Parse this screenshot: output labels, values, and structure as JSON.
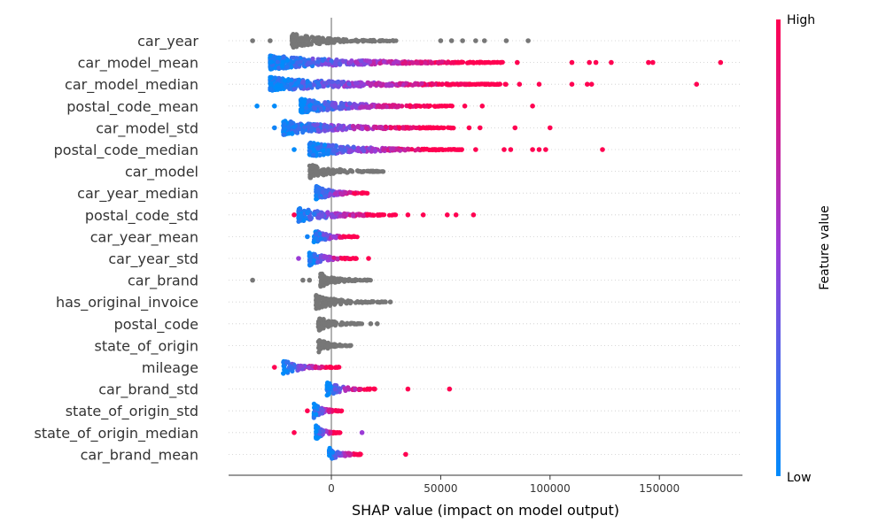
{
  "chart_data": {
    "type": "scatter",
    "subtype": "shap-beeswarm",
    "title": "",
    "xlabel": "SHAP value (impact on model output)",
    "xlim": [
      -47000,
      188000
    ],
    "x_ticks": [
      0,
      50000,
      100000,
      150000
    ],
    "x_tick_labels": [
      "0",
      "50000",
      "100000",
      "150000"
    ],
    "grid": false,
    "colorbar": {
      "label": "Feature value",
      "high_label": "High",
      "low_label": "Low",
      "low_color": "#008bfb",
      "mid_color": "#9b3bd6",
      "high_color": "#ff0051",
      "placement": "right"
    },
    "features": [
      {
        "name": "car_year",
        "colored": false,
        "core": [
          -18000,
          32000
        ],
        "sparse": [
          [
            -36000,
            0.5
          ],
          [
            -28000,
            0.5
          ],
          [
            50000,
            0.5
          ],
          [
            55000,
            0.5
          ],
          [
            60000,
            0.5
          ],
          [
            66000,
            0.5
          ],
          [
            70000,
            0.5
          ],
          [
            80000,
            0.5
          ],
          [
            90000,
            0.5
          ]
        ]
      },
      {
        "name": "car_model_mean",
        "colored": true,
        "core": [
          -28000,
          80000
        ],
        "sparse": [
          [
            85000,
            1
          ],
          [
            110000,
            1
          ],
          [
            118000,
            1
          ],
          [
            121000,
            1
          ],
          [
            128000,
            1
          ],
          [
            145000,
            1
          ],
          [
            147000,
            1
          ],
          [
            178000,
            1
          ]
        ]
      },
      {
        "name": "car_model_median",
        "colored": true,
        "core": [
          -28000,
          80000
        ],
        "sparse": [
          [
            86000,
            1
          ],
          [
            95000,
            1
          ],
          [
            110000,
            1
          ],
          [
            117000,
            1
          ],
          [
            119000,
            1
          ],
          [
            167000,
            1
          ]
        ]
      },
      {
        "name": "postal_code_mean",
        "colored": true,
        "core": [
          -14000,
          56000
        ],
        "sparse": [
          [
            -34000,
            0
          ],
          [
            -26000,
            0
          ],
          [
            61000,
            1
          ],
          [
            69000,
            1
          ],
          [
            92000,
            1
          ]
        ]
      },
      {
        "name": "car_model_std",
        "colored": true,
        "core": [
          -22000,
          56000
        ],
        "sparse": [
          [
            -26000,
            0.05
          ],
          [
            63000,
            1
          ],
          [
            68000,
            1
          ],
          [
            84000,
            1
          ],
          [
            100000,
            1
          ]
        ]
      },
      {
        "name": "postal_code_median",
        "colored": true,
        "core": [
          -10000,
          60000
        ],
        "sparse": [
          [
            -17000,
            0
          ],
          [
            66000,
            1
          ],
          [
            79000,
            1
          ],
          [
            82000,
            1
          ],
          [
            92000,
            1
          ],
          [
            95000,
            1
          ],
          [
            98000,
            1
          ],
          [
            124000,
            1
          ]
        ]
      },
      {
        "name": "car_model",
        "colored": false,
        "core": [
          -10000,
          24000
        ],
        "sparse": []
      },
      {
        "name": "car_year_median",
        "colored": true,
        "core": [
          -7000,
          18000
        ],
        "sparse": []
      },
      {
        "name": "postal_code_std",
        "colored": true,
        "core": [
          -15000,
          30000
        ],
        "sparse": [
          [
            -17000,
            1
          ],
          [
            35000,
            1
          ],
          [
            42000,
            1
          ],
          [
            53000,
            1
          ],
          [
            57000,
            1
          ],
          [
            65000,
            1
          ]
        ]
      },
      {
        "name": "car_year_mean",
        "colored": true,
        "core": [
          -8000,
          12000
        ],
        "sparse": [
          [
            -11000,
            0.05
          ]
        ]
      },
      {
        "name": "car_year_std",
        "colored": true,
        "core": [
          -10000,
          12000
        ],
        "sparse": [
          [
            -15000,
            0.5
          ],
          [
            17000,
            1
          ]
        ]
      },
      {
        "name": "car_brand",
        "colored": false,
        "core": [
          -5000,
          18000
        ],
        "sparse": [
          [
            -36000,
            0.5
          ],
          [
            -13000,
            0.5
          ],
          [
            -10000,
            0.5
          ]
        ]
      },
      {
        "name": "has_original_invoice",
        "colored": false,
        "core": [
          -7000,
          25000
        ],
        "sparse": [
          [
            27000,
            0.5
          ]
        ]
      },
      {
        "name": "postal_code",
        "colored": false,
        "core": [
          -6000,
          14000
        ],
        "sparse": [
          [
            18000,
            0.5
          ],
          [
            21000,
            0.5
          ]
        ]
      },
      {
        "name": "state_of_origin",
        "colored": false,
        "core": [
          -6000,
          9000
        ],
        "sparse": []
      },
      {
        "name": "mileage",
        "colored": true,
        "core": [
          -22000,
          4000
        ],
        "sparse": [
          [
            -26000,
            1
          ]
        ]
      },
      {
        "name": "car_brand_std",
        "colored": true,
        "core": [
          -2000,
          20000
        ],
        "sparse": [
          [
            35000,
            1
          ],
          [
            54000,
            1
          ]
        ]
      },
      {
        "name": "state_of_origin_std",
        "colored": true,
        "core": [
          -8000,
          5000
        ],
        "sparse": [
          [
            -11000,
            1
          ]
        ]
      },
      {
        "name": "state_of_origin_median",
        "colored": true,
        "core": [
          -7000,
          4000
        ],
        "sparse": [
          [
            -17000,
            1
          ],
          [
            14000,
            0.5
          ]
        ]
      },
      {
        "name": "car_brand_mean",
        "colored": true,
        "core": [
          -1000,
          15000
        ],
        "sparse": [
          [
            34000,
            1
          ]
        ]
      }
    ]
  }
}
